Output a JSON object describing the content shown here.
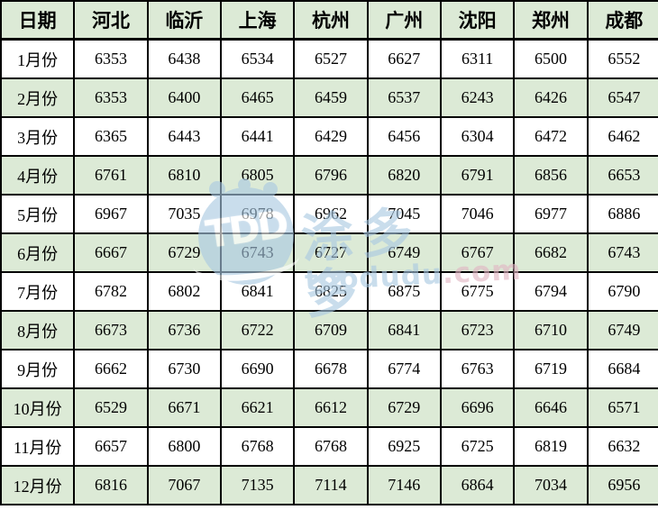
{
  "chart_data": {
    "type": "table",
    "columns": [
      "日期",
      "河北",
      "临沂",
      "上海",
      "杭州",
      "广州",
      "沈阳",
      "郑州",
      "成都"
    ],
    "rows": [
      {
        "label": "1月份",
        "values": [
          "6353",
          "6438",
          "6534",
          "6527",
          "6627",
          "6311",
          "6500",
          "6552"
        ],
        "value_colors": [
          "black",
          "black",
          "black",
          "black",
          "black",
          "black",
          "black",
          "black"
        ]
      },
      {
        "label": "2月份",
        "values": [
          "6353",
          "6400",
          "6465",
          "6459",
          "6537",
          "6243",
          "6426",
          "6547"
        ],
        "value_colors": [
          "black",
          "black",
          "black",
          "black",
          "black",
          "black",
          "black",
          "black"
        ]
      },
      {
        "label": "3月份",
        "values": [
          "6365",
          "6443",
          "6441",
          "6429",
          "6456",
          "6304",
          "6472",
          "6462"
        ],
        "value_colors": [
          "red",
          "red",
          "blue",
          "blue",
          "blue",
          "red",
          "red",
          "blue"
        ]
      },
      {
        "label": "4月份",
        "values": [
          "6761",
          "6810",
          "6805",
          "6796",
          "6820",
          "6791",
          "6856",
          "6653"
        ],
        "value_colors": [
          "red",
          "red",
          "red",
          "red",
          "red",
          "red",
          "red",
          "red"
        ]
      },
      {
        "label": "5月份",
        "values": [
          "6967",
          "7035",
          "6978",
          "6962",
          "7045",
          "7046",
          "6977",
          "6886"
        ],
        "value_colors": [
          "red",
          "red",
          "red",
          "red",
          "red",
          "red",
          "red",
          "red"
        ]
      },
      {
        "label": "6月份",
        "values": [
          "6667",
          "6729",
          "6743",
          "6727",
          "6749",
          "6767",
          "6682",
          "6743"
        ],
        "value_colors": [
          "blue",
          "blue",
          "blue",
          "blue",
          "blue",
          "blue",
          "blue",
          "blue"
        ]
      },
      {
        "label": "7月份",
        "values": [
          "6782",
          "6802",
          "6841",
          "6825",
          "6875",
          "6775",
          "6794",
          "6790"
        ],
        "value_colors": [
          "red",
          "red",
          "red",
          "red",
          "red",
          "red",
          "red",
          "red"
        ]
      },
      {
        "label": "8月份",
        "values": [
          "6673",
          "6736",
          "6722",
          "6709",
          "6841",
          "6723",
          "6710",
          "6749"
        ],
        "value_colors": [
          "blue",
          "blue",
          "blue",
          "blue",
          "blue",
          "blue",
          "blue",
          "blue"
        ]
      },
      {
        "label": "9月份",
        "values": [
          "6662",
          "6730",
          "6690",
          "6678",
          "6774",
          "6763",
          "6719",
          "6684"
        ],
        "value_colors": [
          "blue",
          "blue",
          "blue",
          "blue",
          "blue",
          "red",
          "red",
          "blue"
        ]
      },
      {
        "label": "10月份",
        "values": [
          "6529",
          "6671",
          "6621",
          "6612",
          "6729",
          "6696",
          "6646",
          "6571"
        ],
        "value_colors": [
          "blue",
          "blue",
          "blue",
          "blue",
          "blue",
          "blue",
          "blue",
          "blue"
        ]
      },
      {
        "label": "11月份",
        "values": [
          "6657",
          "6800",
          "6768",
          "6768",
          "6925",
          "6725",
          "6819",
          "6632"
        ],
        "value_colors": [
          "red",
          "red",
          "red",
          "red",
          "red",
          "red",
          "red",
          "red"
        ]
      },
      {
        "label": "12月份",
        "values": [
          "6816",
          "7067",
          "7135",
          "7114",
          "7146",
          "6864",
          "7034",
          "6956"
        ],
        "value_colors": [
          "red",
          "red",
          "red",
          "red",
          "red",
          "red",
          "red",
          "red"
        ]
      }
    ]
  },
  "watermark": {
    "logo_text": "TDD",
    "brand_text": "涂多多",
    "domain_name": "toodudu",
    "domain_tld": ".com"
  },
  "colors": {
    "header_bg": "#dcead6",
    "alt_row_bg": "#dcead6",
    "row_bg": "#ffffff",
    "border": "#000000",
    "red_text": "#fa2f2f",
    "blue_text": "#2b2bdf",
    "black_text": "#000000",
    "watermark_blue": "#a9c9e2",
    "watermark_pink": "#e2b5c3"
  }
}
